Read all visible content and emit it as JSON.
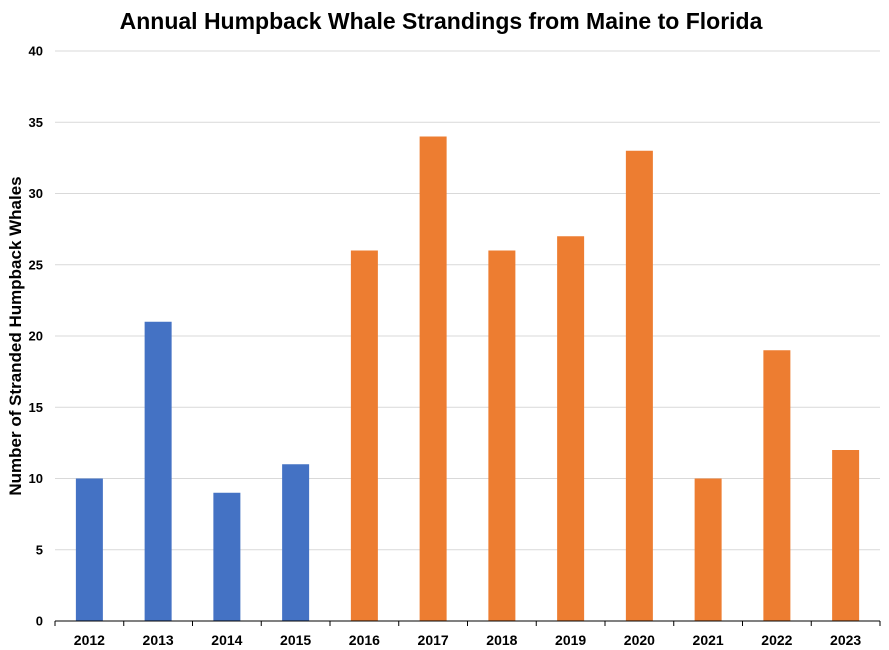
{
  "chart_data": {
    "type": "bar",
    "title": "Annual Humpback Whale Strandings from Maine to Florida",
    "xlabel": "",
    "ylabel": "Number of Stranded Humpback Whales",
    "categories": [
      "2012",
      "2013",
      "2014",
      "2015",
      "2016",
      "2017",
      "2018",
      "2019",
      "2020",
      "2021",
      "2022",
      "2023"
    ],
    "values": [
      10,
      21,
      9,
      11,
      26,
      34,
      26,
      27,
      33,
      10,
      19,
      12
    ],
    "bar_colors": [
      "#4472c4",
      "#4472c4",
      "#4472c4",
      "#4472c4",
      "#ed7d31",
      "#ed7d31",
      "#ed7d31",
      "#ed7d31",
      "#ed7d31",
      "#ed7d31",
      "#ed7d31",
      "#ed7d31"
    ],
    "ylim": [
      0,
      40
    ],
    "yticks": [
      0,
      5,
      10,
      15,
      20,
      25,
      30,
      35,
      40
    ],
    "grid": true,
    "legend": "none"
  }
}
